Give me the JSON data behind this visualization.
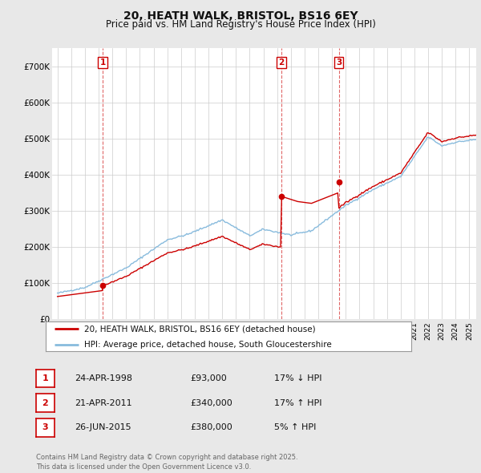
{
  "title": "20, HEATH WALK, BRISTOL, BS16 6EY",
  "subtitle": "Price paid vs. HM Land Registry's House Price Index (HPI)",
  "ylim": [
    0,
    750000
  ],
  "yticks": [
    0,
    100000,
    200000,
    300000,
    400000,
    500000,
    600000,
    700000
  ],
  "ytick_labels": [
    "£0",
    "£100K",
    "£200K",
    "£300K",
    "£400K",
    "£500K",
    "£600K",
    "£700K"
  ],
  "sale_color": "#cc0000",
  "hpi_color": "#88bbdd",
  "background_color": "#e8e8e8",
  "plot_bg_color": "#ffffff",
  "grid_color": "#cccccc",
  "sale_years": [
    1998.3,
    2011.32,
    2015.5
  ],
  "sale_prices": [
    93000,
    340000,
    380000
  ],
  "sale_labels": [
    "1",
    "2",
    "3"
  ],
  "legend_sale_label": "20, HEATH WALK, BRISTOL, BS16 6EY (detached house)",
  "legend_hpi_label": "HPI: Average price, detached house, South Gloucestershire",
  "table_rows": [
    {
      "num": "1",
      "date": "24-APR-1998",
      "price": "£93,000",
      "hpi": "17% ↓ HPI"
    },
    {
      "num": "2",
      "date": "21-APR-2011",
      "price": "£340,000",
      "hpi": "17% ↑ HPI"
    },
    {
      "num": "3",
      "date": "26-JUN-2015",
      "price": "£380,000",
      "hpi": "5% ↑ HPI"
    }
  ],
  "footer": "Contains HM Land Registry data © Crown copyright and database right 2025.\nThis data is licensed under the Open Government Licence v3.0."
}
